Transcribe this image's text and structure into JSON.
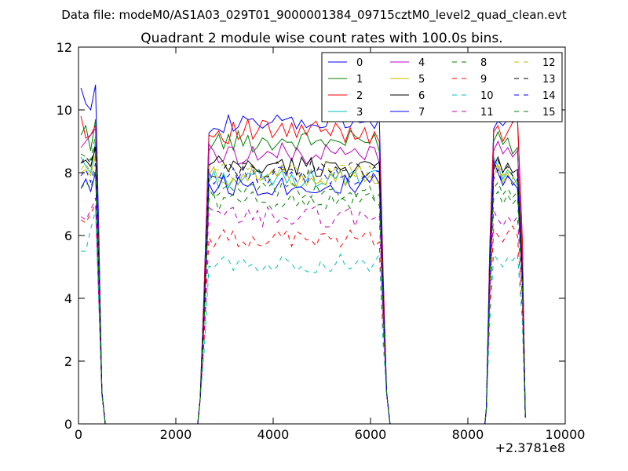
{
  "figure": {
    "suptitle": "Data file: modeM0/AS1A03_029T01_9000001384_09715cztM0_level2_quad_clean.evt",
    "x_offset_label": "+2.3781e8"
  },
  "chart_data": {
    "type": "line",
    "title": "Quadrant 2 module wise count rates with 100.0s bins.",
    "xlabel": "",
    "ylabel": "",
    "xlim": [
      0,
      10000
    ],
    "ylim": [
      0,
      12
    ],
    "xticks": [
      0,
      2000,
      4000,
      6000,
      8000,
      10000
    ],
    "xtick_labels": [
      "0",
      "2000",
      "4000",
      "6000",
      "8000",
      "10000"
    ],
    "yticks": [
      0,
      2,
      4,
      6,
      8,
      10,
      12
    ],
    "ytick_labels": [
      "0",
      "2",
      "4",
      "6",
      "8",
      "10",
      "12"
    ],
    "grid": false,
    "legend_position": "top-right",
    "legend_columns": 4,
    "x_note": "x values are offsets added to 2.3781e8 as printed under the axis",
    "segments": [
      {
        "x": [
          50,
          150,
          250,
          350,
          420,
          480,
          550,
          600
        ]
      },
      {
        "x": [
          2500,
          2580,
          2680,
          2780,
          2880,
          2980,
          3080,
          3180,
          3280,
          3380,
          3480,
          3580,
          3680,
          3780,
          3880,
          3980,
          4080,
          4180,
          4280,
          4380,
          4480,
          4580,
          4680,
          4780,
          4880,
          4980,
          5080,
          5180,
          5280,
          5380,
          5480,
          5580,
          5680,
          5780,
          5880,
          5980,
          6080,
          6180,
          6260,
          6330,
          6400
        ]
      },
      {
        "x": [
          8380,
          8450,
          8530,
          8620,
          8720,
          8820,
          8920,
          9020,
          9120,
          9180
        ]
      }
    ],
    "series": [
      {
        "name": "0",
        "color": "#0000ff",
        "dash": "solid",
        "base": [
          10.7,
          10.2,
          10.0,
          10.8
        ],
        "mid": 9.55,
        "amp": 0.3,
        "late": [
          9.4,
          9.65,
          9.5,
          9.7,
          9.6,
          9.7
        ]
      },
      {
        "name": "1",
        "color": "#008000",
        "dash": "solid",
        "base": [
          9.2,
          9.5,
          8.7,
          9.7
        ],
        "mid": 9.0,
        "amp": 0.35,
        "late": [
          9.0,
          9.3,
          8.9,
          9.1,
          8.6,
          8.8
        ]
      },
      {
        "name": "2",
        "color": "#ff0000",
        "dash": "solid",
        "base": [
          9.8,
          9.1,
          9.2,
          9.5
        ],
        "mid": 9.3,
        "amp": 0.4,
        "late": [
          9.3,
          9.5,
          9.0,
          9.3,
          9.6,
          9.8
        ]
      },
      {
        "name": "3",
        "color": "#00bfbf",
        "dash": "solid",
        "base": [
          8.5,
          8.2,
          8.0,
          9.0
        ],
        "mid": 7.8,
        "amp": 0.3,
        "late": [
          8.5,
          8.2,
          7.8,
          8.1,
          7.9,
          7.6
        ]
      },
      {
        "name": "4",
        "color": "#bf00bf",
        "dash": "solid",
        "base": [
          8.8,
          9.0,
          9.2,
          9.4
        ],
        "mid": 8.6,
        "amp": 0.35,
        "late": [
          8.7,
          9.0,
          8.6,
          8.8,
          8.5,
          8.7
        ]
      },
      {
        "name": "5",
        "color": "#bfbf00",
        "dash": "solid",
        "base": [
          8.0,
          8.1,
          7.9,
          8.6
        ],
        "mid": 7.9,
        "amp": 0.35,
        "late": [
          7.9,
          8.2,
          7.7,
          8.0,
          7.6,
          7.8
        ]
      },
      {
        "name": "6",
        "color": "#000000",
        "dash": "solid",
        "base": [
          8.3,
          8.4,
          8.2,
          8.8
        ],
        "mid": 8.2,
        "amp": 0.35,
        "late": [
          8.2,
          8.5,
          8.0,
          8.3,
          8.0,
          8.1
        ]
      },
      {
        "name": "7",
        "color": "#0000ff",
        "dash": "solid",
        "base": [
          7.5,
          7.8,
          7.4,
          8.0
        ],
        "mid": 7.6,
        "amp": 0.35,
        "late": [
          8.4,
          8.0,
          7.6,
          7.9,
          7.7,
          7.5
        ]
      },
      {
        "name": "8",
        "color": "#008000",
        "dash": "dashed",
        "base": [
          8.6,
          8.5,
          8.4,
          9.2
        ],
        "mid": 7.1,
        "amp": 0.3,
        "late": [
          7.2,
          7.4,
          7.0,
          7.3,
          7.0,
          7.2
        ]
      },
      {
        "name": "9",
        "color": "#ff0000",
        "dash": "dashed",
        "base": [
          6.5,
          6.4,
          6.7,
          7.0
        ],
        "mid": 5.9,
        "amp": 0.3,
        "late": [
          6.2,
          6.0,
          5.8,
          6.1,
          6.3,
          6.0
        ]
      },
      {
        "name": "10",
        "color": "#00bfbf",
        "dash": "dashed",
        "base": [
          5.5,
          5.5,
          6.2,
          6.8
        ],
        "mid": 5.1,
        "amp": 0.3,
        "late": [
          5.4,
          5.2,
          5.0,
          5.3,
          5.2,
          5.4
        ]
      },
      {
        "name": "11",
        "color": "#bf00bf",
        "dash": "dashed",
        "base": [
          6.6,
          6.5,
          6.8,
          7.2
        ],
        "mid": 6.6,
        "amp": 0.35,
        "late": [
          6.8,
          6.5,
          6.3,
          6.6,
          6.4,
          6.6
        ]
      },
      {
        "name": "12",
        "color": "#bfbf00",
        "dash": "dashed",
        "base": [
          8.1,
          8.3,
          8.0,
          8.5
        ],
        "mid": 8.0,
        "amp": 0.35,
        "late": [
          8.0,
          8.3,
          7.9,
          8.1,
          7.8,
          8.0
        ]
      },
      {
        "name": "13",
        "color": "#000000",
        "dash": "dashed",
        "base": [
          8.3,
          8.5,
          8.3,
          8.9
        ],
        "mid": 8.1,
        "amp": 0.3,
        "late": [
          8.1,
          8.4,
          8.0,
          8.2,
          7.9,
          8.0
        ]
      },
      {
        "name": "14",
        "color": "#0000ff",
        "dash": "dashed",
        "base": [
          7.9,
          8.1,
          7.7,
          8.3
        ],
        "mid": 7.9,
        "amp": 0.3,
        "late": [
          7.8,
          8.1,
          7.6,
          7.9,
          7.6,
          7.8
        ]
      },
      {
        "name": "15",
        "color": "#008000",
        "dash": "dashed",
        "base": [
          7.5,
          7.7,
          7.5,
          8.1
        ],
        "mid": 7.4,
        "amp": 0.3,
        "late": [
          7.5,
          7.7,
          7.3,
          7.5,
          7.2,
          7.4
        ]
      }
    ]
  }
}
